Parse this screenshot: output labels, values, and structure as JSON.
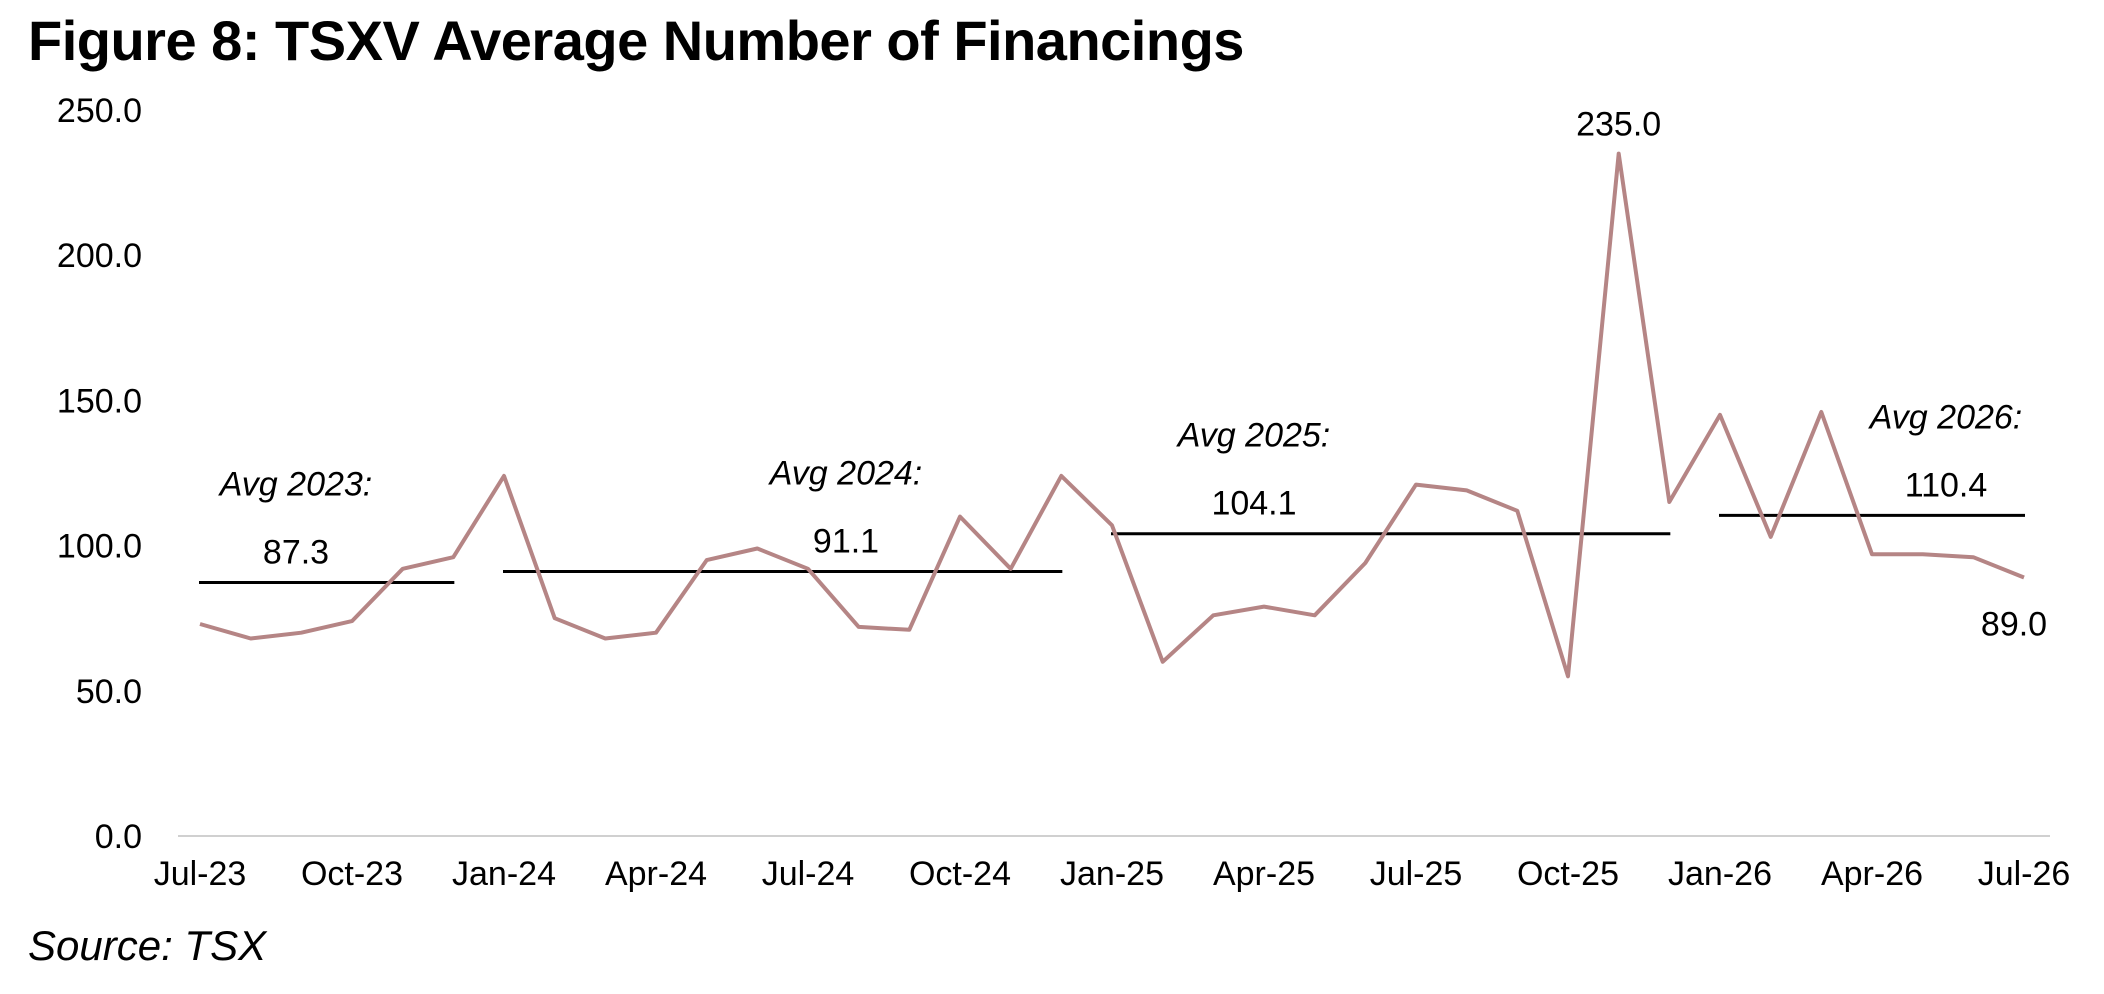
{
  "title": "Figure 8: TSXV Average Number of Financings",
  "source": "Source: TSX",
  "colors": {
    "series": "#B58585",
    "average": "#000000",
    "axis": "#D0D0D0"
  },
  "chart_data": {
    "type": "line",
    "ylim": [
      0,
      250
    ],
    "yticks": [
      "0.0",
      "50.0",
      "100.0",
      "150.0",
      "200.0",
      "250.0"
    ],
    "xticks": [
      "Jul-23",
      "Oct-23",
      "Jan-24",
      "Apr-24",
      "Jul-24",
      "Oct-24",
      "Jan-25",
      "Apr-25",
      "Jul-25",
      "Oct-25",
      "Jan-26",
      "Apr-26",
      "Jul-26"
    ],
    "categories": [
      "Jul-23",
      "Aug-23",
      "Sep-23",
      "Oct-23",
      "Nov-23",
      "Dec-23",
      "Jan-24",
      "Feb-24",
      "Mar-24",
      "Apr-24",
      "May-24",
      "Jun-24",
      "Jul-24",
      "Aug-24",
      "Sep-24",
      "Oct-24",
      "Nov-24",
      "Dec-24",
      "Jan-25",
      "Feb-25",
      "Mar-25",
      "Apr-25",
      "May-25",
      "Jun-25",
      "Jul-25",
      "Aug-25",
      "Sep-25",
      "Oct-25",
      "Nov-25",
      "Dec-25",
      "Jan-26",
      "Feb-26",
      "Mar-26",
      "Apr-26",
      "May-26",
      "Jun-26",
      "Jul-26"
    ],
    "series": [
      {
        "values": [
          73,
          68,
          70,
          74,
          92,
          96,
          124,
          75,
          68,
          70,
          95,
          99,
          92,
          72,
          71,
          110,
          92,
          124,
          107,
          60,
          76,
          79,
          76,
          94,
          121,
          119,
          112,
          55,
          235,
          115,
          145,
          103,
          146,
          97,
          97,
          96,
          89
        ]
      }
    ],
    "averages": [
      {
        "label": "Avg 2023:",
        "value_text": "87.3",
        "value": 87.3,
        "start": "Jul-23",
        "end": "Dec-23"
      },
      {
        "label": "Avg 2024:",
        "value_text": "91.1",
        "value": 91.1,
        "start": "Jan-24",
        "end": "Dec-24"
      },
      {
        "label": "Avg 2025:",
        "value_text": "104.1",
        "value": 104.1,
        "start": "Jan-25",
        "end": "Dec-25"
      },
      {
        "label": "Avg 2026:",
        "value_text": "110.4",
        "value": 110.4,
        "start": "Jan-26",
        "end": "Jul-26"
      }
    ],
    "annotations": [
      {
        "text": "235.0",
        "at": "Nov-25"
      },
      {
        "text": "89.0",
        "at": "Jul-26"
      }
    ],
    "grid": false,
    "legend": "none"
  }
}
